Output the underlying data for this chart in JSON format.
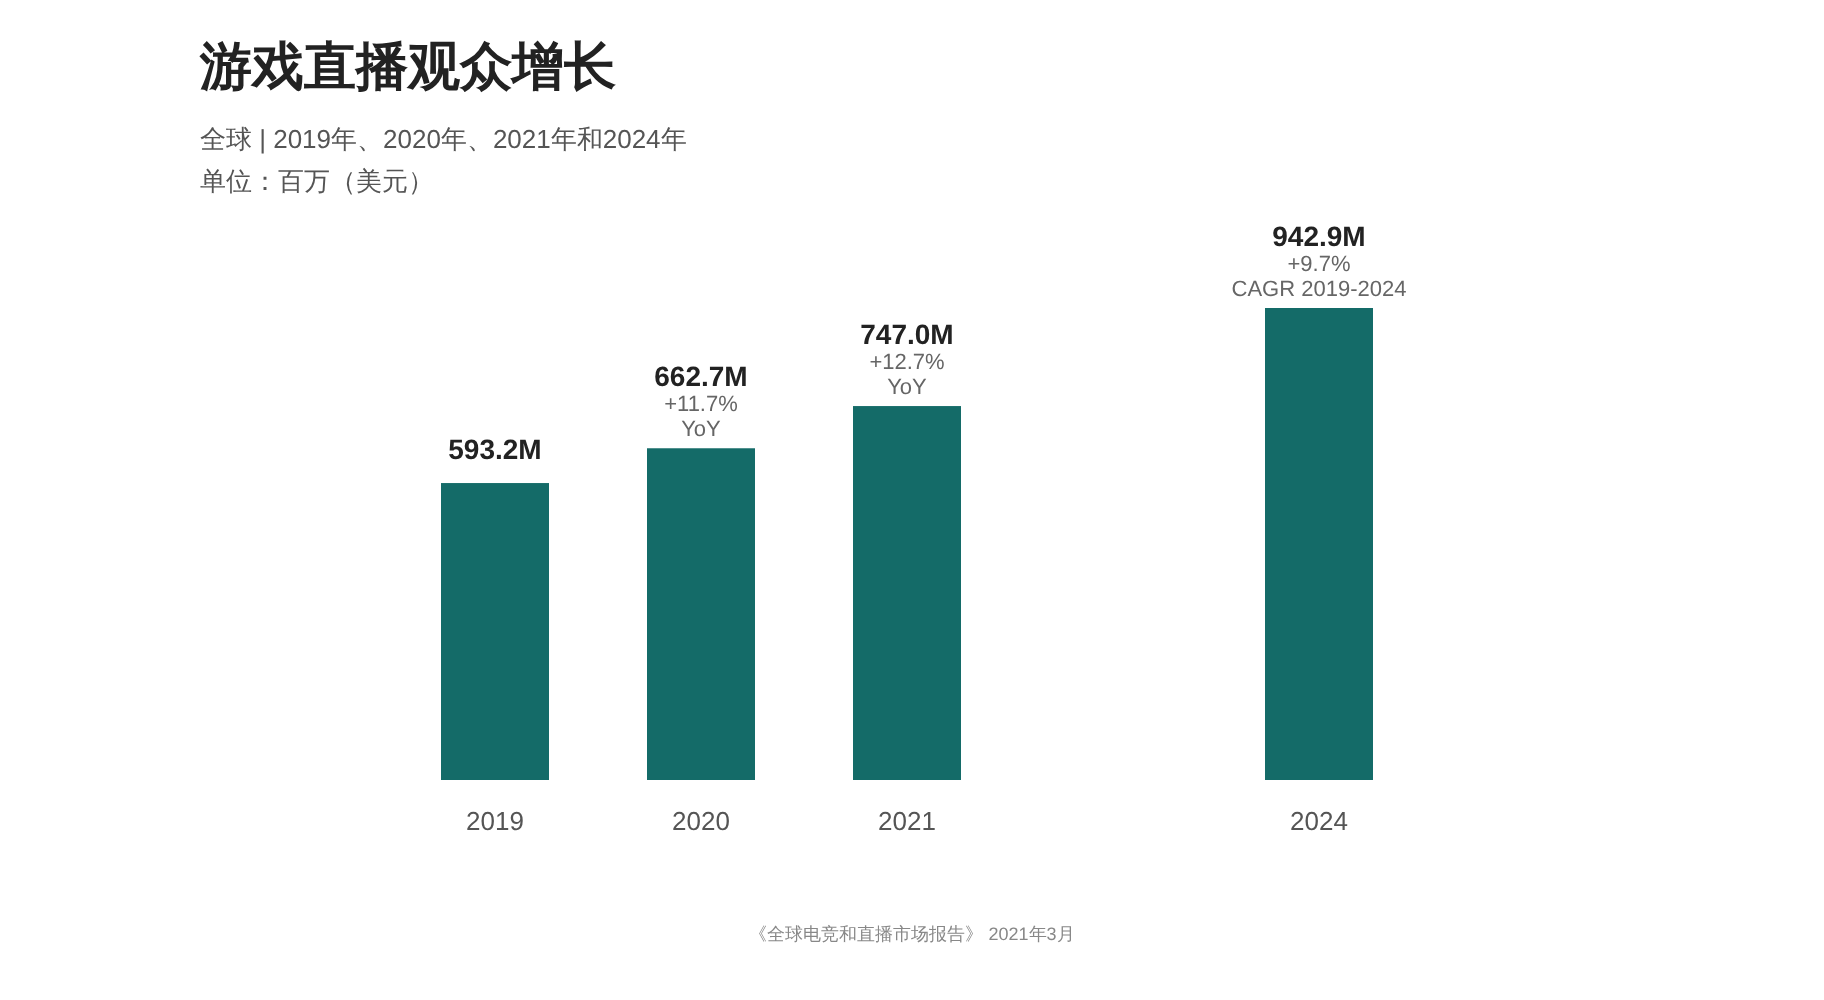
{
  "chart_data": {
    "type": "bar",
    "title": "游戏直播观众增长",
    "subtitle": "全球 | 2019年、2020年、2021年和2024年",
    "categories": [
      "2019",
      "2020",
      "2021",
      null,
      "2024"
    ],
    "values": [
      593.2,
      662.7,
      747.0,
      null,
      942.9
    ],
    "value_labels": [
      "593.2M",
      "662.7M",
      "747.0M",
      null,
      "942.9M"
    ],
    "color": "#146b68",
    "annotations": [
      "单位：百万（美元）",
      {
        "text": "+11.7%\nYoY",
        "x": "2020",
        "y": 662.7
      },
      {
        "text": "+12.7%\nYoY",
        "x": "2021",
        "y": 747.0
      },
      {
        "text": "+9.7%\nCAGR 2019-2024",
        "x": "2024",
        "y": 942.9
      },
      "《全球电竞和直播市场报告》 2021年3月"
    ],
    "relative": false
  }
}
